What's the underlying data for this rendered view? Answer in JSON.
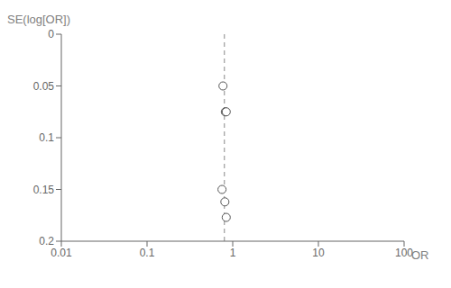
{
  "chart_data": {
    "type": "scatter",
    "x_label": "OR",
    "y_label": "SE(log[OR])",
    "log": "x",
    "xlim": [
      0.01,
      100
    ],
    "ylim": [
      0.2,
      0
    ],
    "xticks": [
      0.01,
      0.1,
      1,
      10,
      100
    ],
    "yticks": [
      0,
      0.05,
      0.1,
      0.15,
      0.2
    ],
    "x": [
      0.77,
      0.82,
      0.84,
      0.75,
      0.81,
      0.84
    ],
    "values": [
      0.05,
      0.075,
      0.075,
      0.15,
      0.162,
      0.177
    ],
    "color": "#555555",
    "marker": "hollow",
    "reference_lines": [
      {
        "x": 0.8,
        "line_style": "dashed",
        "color": "#888888"
      }
    ]
  }
}
